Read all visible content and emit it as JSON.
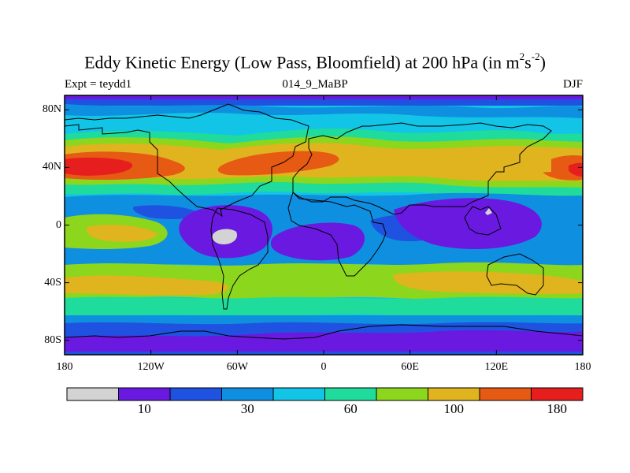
{
  "title": {
    "main": "Eddy Kinetic Energy (Low Pass, Bloomfield) at 200 hPa (in m",
    "sup1": "2",
    "mid": "s",
    "sup2": "-2",
    "close": ")"
  },
  "subtitle_left": "Expt = teydd1",
  "subtitle_center": "014_9_MaBP",
  "subtitle_right": "DJF",
  "map_data": {
    "projection": "cylindrical-equidistant",
    "lon_range": [
      -180,
      180
    ],
    "lat_range": [
      -90,
      90
    ],
    "lon_ticks": [
      {
        "value": -180,
        "label": "180"
      },
      {
        "value": -120,
        "label": "120W"
      },
      {
        "value": -60,
        "label": "60W"
      },
      {
        "value": 0,
        "label": "0"
      },
      {
        "value": 60,
        "label": "60E"
      },
      {
        "value": 120,
        "label": "120E"
      },
      {
        "value": 180,
        "label": "180"
      }
    ],
    "lat_ticks": [
      {
        "value": 80,
        "label": "80N"
      },
      {
        "value": 40,
        "label": "40N"
      },
      {
        "value": 0,
        "label": "0"
      },
      {
        "value": -40,
        "label": "40S"
      },
      {
        "value": -80,
        "label": "80S"
      }
    ]
  },
  "colorbar": {
    "colors": [
      "#d3d3d3",
      "#6a19e0",
      "#1f52e0",
      "#0f8fe0",
      "#12c4e6",
      "#1fdc9c",
      "#8cd61e",
      "#e0b41e",
      "#e65a14",
      "#e61e1e"
    ],
    "labels": [
      {
        "value": "10",
        "boundary": 1
      },
      {
        "value": "30",
        "boundary": 3
      },
      {
        "value": "60",
        "boundary": 5
      },
      {
        "value": "100",
        "boundary": 7
      },
      {
        "value": "180",
        "boundary": 9
      }
    ]
  }
}
